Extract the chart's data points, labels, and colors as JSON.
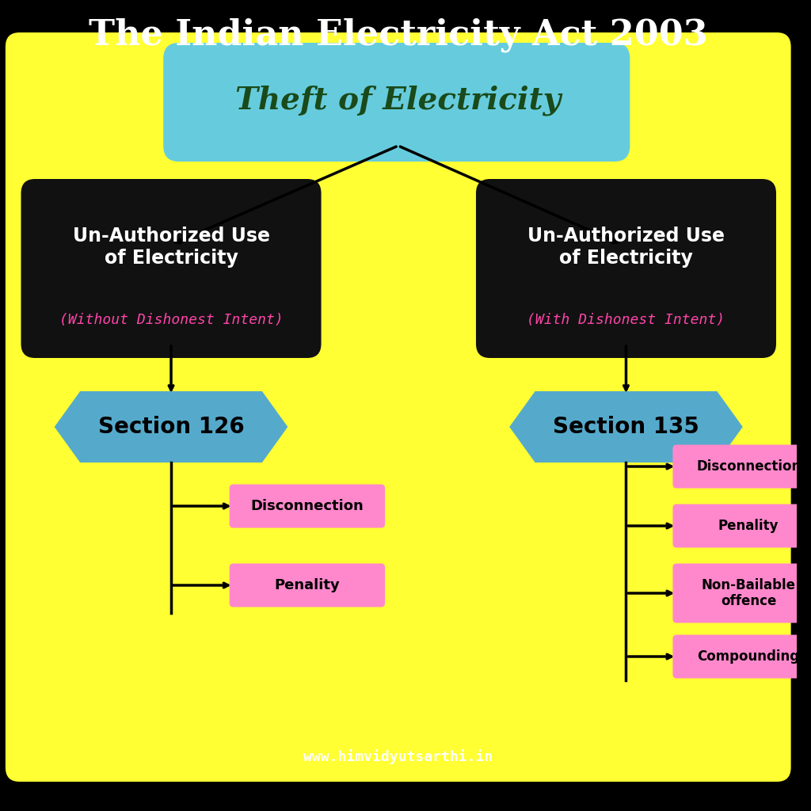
{
  "title": "The Indian Electricity Act 2003",
  "subtitle": "www.himvidyutsarthi.in",
  "bg_outer": "#000000",
  "bg_inner": "#ffff33",
  "top_box_text": "Theft of Electricity",
  "top_box_color": "#66ccdd",
  "top_box_text_color": "#1a4a1a",
  "left_box_title": "Un-Authorized Use\nof Electricity",
  "left_box_sub": "(Without Dishonest Intent)",
  "right_box_title": "Un-Authorized Use\nof Electricity",
  "right_box_sub": "(With Dishonest Intent)",
  "black_box_text_color": "#ffffff",
  "black_box_sub_color": "#ff44aa",
  "black_box_bg": "#111111",
  "left_section_label": "Section 126",
  "right_section_label": "Section 135",
  "section_box_color": "#55aacc",
  "section_text_color": "#000000",
  "left_outcomes": [
    "Disconnection",
    "Penality"
  ],
  "right_outcomes": [
    "Disconnection",
    "Penality",
    "Non-Bailable\noffence",
    "Compounding"
  ],
  "outcome_box_color": "#ff88cc",
  "outcome_text_color": "#000000"
}
